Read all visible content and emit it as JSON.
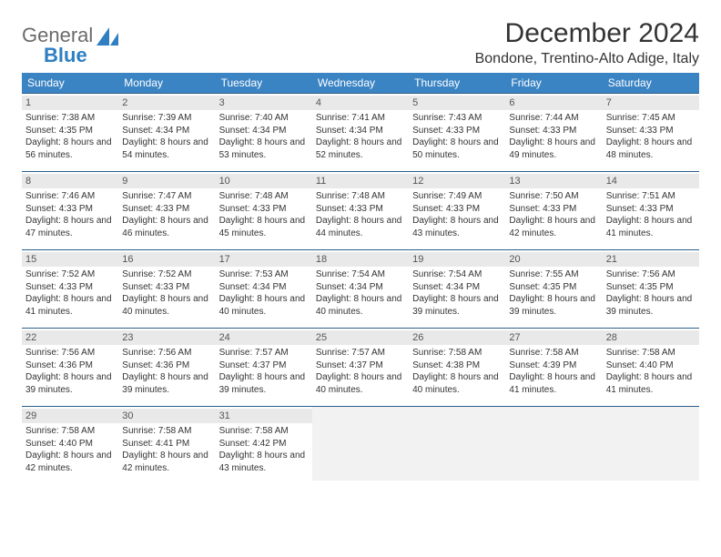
{
  "brand": {
    "line1": "General",
    "line2": "Blue",
    "logo_color": "#2f7fc2",
    "text_color": "#6b6b6b"
  },
  "title": "December 2024",
  "location": "Bondone, Trentino-Alto Adige, Italy",
  "theme": {
    "header_bg": "#3b84c4",
    "header_fg": "#ffffff",
    "cell_border": "#2a5f8a",
    "daynum_bg": "#e9e9e9",
    "empty_bg": "#f2f2f2",
    "page_bg": "#ffffff",
    "text_color": "#333333",
    "font_family": "Arial",
    "title_fontsize": 30,
    "location_fontsize": 16,
    "header_fontsize": 12,
    "daynum_fontsize": 11,
    "body_fontsize": 10
  },
  "weekdays": [
    "Sunday",
    "Monday",
    "Tuesday",
    "Wednesday",
    "Thursday",
    "Friday",
    "Saturday"
  ],
  "weeks": [
    [
      {
        "day": "1",
        "sunrise": "Sunrise: 7:38 AM",
        "sunset": "Sunset: 4:35 PM",
        "daylight": "Daylight: 8 hours and 56 minutes."
      },
      {
        "day": "2",
        "sunrise": "Sunrise: 7:39 AM",
        "sunset": "Sunset: 4:34 PM",
        "daylight": "Daylight: 8 hours and 54 minutes."
      },
      {
        "day": "3",
        "sunrise": "Sunrise: 7:40 AM",
        "sunset": "Sunset: 4:34 PM",
        "daylight": "Daylight: 8 hours and 53 minutes."
      },
      {
        "day": "4",
        "sunrise": "Sunrise: 7:41 AM",
        "sunset": "Sunset: 4:34 PM",
        "daylight": "Daylight: 8 hours and 52 minutes."
      },
      {
        "day": "5",
        "sunrise": "Sunrise: 7:43 AM",
        "sunset": "Sunset: 4:33 PM",
        "daylight": "Daylight: 8 hours and 50 minutes."
      },
      {
        "day": "6",
        "sunrise": "Sunrise: 7:44 AM",
        "sunset": "Sunset: 4:33 PM",
        "daylight": "Daylight: 8 hours and 49 minutes."
      },
      {
        "day": "7",
        "sunrise": "Sunrise: 7:45 AM",
        "sunset": "Sunset: 4:33 PM",
        "daylight": "Daylight: 8 hours and 48 minutes."
      }
    ],
    [
      {
        "day": "8",
        "sunrise": "Sunrise: 7:46 AM",
        "sunset": "Sunset: 4:33 PM",
        "daylight": "Daylight: 8 hours and 47 minutes."
      },
      {
        "day": "9",
        "sunrise": "Sunrise: 7:47 AM",
        "sunset": "Sunset: 4:33 PM",
        "daylight": "Daylight: 8 hours and 46 minutes."
      },
      {
        "day": "10",
        "sunrise": "Sunrise: 7:48 AM",
        "sunset": "Sunset: 4:33 PM",
        "daylight": "Daylight: 8 hours and 45 minutes."
      },
      {
        "day": "11",
        "sunrise": "Sunrise: 7:48 AM",
        "sunset": "Sunset: 4:33 PM",
        "daylight": "Daylight: 8 hours and 44 minutes."
      },
      {
        "day": "12",
        "sunrise": "Sunrise: 7:49 AM",
        "sunset": "Sunset: 4:33 PM",
        "daylight": "Daylight: 8 hours and 43 minutes."
      },
      {
        "day": "13",
        "sunrise": "Sunrise: 7:50 AM",
        "sunset": "Sunset: 4:33 PM",
        "daylight": "Daylight: 8 hours and 42 minutes."
      },
      {
        "day": "14",
        "sunrise": "Sunrise: 7:51 AM",
        "sunset": "Sunset: 4:33 PM",
        "daylight": "Daylight: 8 hours and 41 minutes."
      }
    ],
    [
      {
        "day": "15",
        "sunrise": "Sunrise: 7:52 AM",
        "sunset": "Sunset: 4:33 PM",
        "daylight": "Daylight: 8 hours and 41 minutes."
      },
      {
        "day": "16",
        "sunrise": "Sunrise: 7:52 AM",
        "sunset": "Sunset: 4:33 PM",
        "daylight": "Daylight: 8 hours and 40 minutes."
      },
      {
        "day": "17",
        "sunrise": "Sunrise: 7:53 AM",
        "sunset": "Sunset: 4:34 PM",
        "daylight": "Daylight: 8 hours and 40 minutes."
      },
      {
        "day": "18",
        "sunrise": "Sunrise: 7:54 AM",
        "sunset": "Sunset: 4:34 PM",
        "daylight": "Daylight: 8 hours and 40 minutes."
      },
      {
        "day": "19",
        "sunrise": "Sunrise: 7:54 AM",
        "sunset": "Sunset: 4:34 PM",
        "daylight": "Daylight: 8 hours and 39 minutes."
      },
      {
        "day": "20",
        "sunrise": "Sunrise: 7:55 AM",
        "sunset": "Sunset: 4:35 PM",
        "daylight": "Daylight: 8 hours and 39 minutes."
      },
      {
        "day": "21",
        "sunrise": "Sunrise: 7:56 AM",
        "sunset": "Sunset: 4:35 PM",
        "daylight": "Daylight: 8 hours and 39 minutes."
      }
    ],
    [
      {
        "day": "22",
        "sunrise": "Sunrise: 7:56 AM",
        "sunset": "Sunset: 4:36 PM",
        "daylight": "Daylight: 8 hours and 39 minutes."
      },
      {
        "day": "23",
        "sunrise": "Sunrise: 7:56 AM",
        "sunset": "Sunset: 4:36 PM",
        "daylight": "Daylight: 8 hours and 39 minutes."
      },
      {
        "day": "24",
        "sunrise": "Sunrise: 7:57 AM",
        "sunset": "Sunset: 4:37 PM",
        "daylight": "Daylight: 8 hours and 39 minutes."
      },
      {
        "day": "25",
        "sunrise": "Sunrise: 7:57 AM",
        "sunset": "Sunset: 4:37 PM",
        "daylight": "Daylight: 8 hours and 40 minutes."
      },
      {
        "day": "26",
        "sunrise": "Sunrise: 7:58 AM",
        "sunset": "Sunset: 4:38 PM",
        "daylight": "Daylight: 8 hours and 40 minutes."
      },
      {
        "day": "27",
        "sunrise": "Sunrise: 7:58 AM",
        "sunset": "Sunset: 4:39 PM",
        "daylight": "Daylight: 8 hours and 41 minutes."
      },
      {
        "day": "28",
        "sunrise": "Sunrise: 7:58 AM",
        "sunset": "Sunset: 4:40 PM",
        "daylight": "Daylight: 8 hours and 41 minutes."
      }
    ],
    [
      {
        "day": "29",
        "sunrise": "Sunrise: 7:58 AM",
        "sunset": "Sunset: 4:40 PM",
        "daylight": "Daylight: 8 hours and 42 minutes."
      },
      {
        "day": "30",
        "sunrise": "Sunrise: 7:58 AM",
        "sunset": "Sunset: 4:41 PM",
        "daylight": "Daylight: 8 hours and 42 minutes."
      },
      {
        "day": "31",
        "sunrise": "Sunrise: 7:58 AM",
        "sunset": "Sunset: 4:42 PM",
        "daylight": "Daylight: 8 hours and 43 minutes."
      },
      null,
      null,
      null,
      null
    ]
  ]
}
